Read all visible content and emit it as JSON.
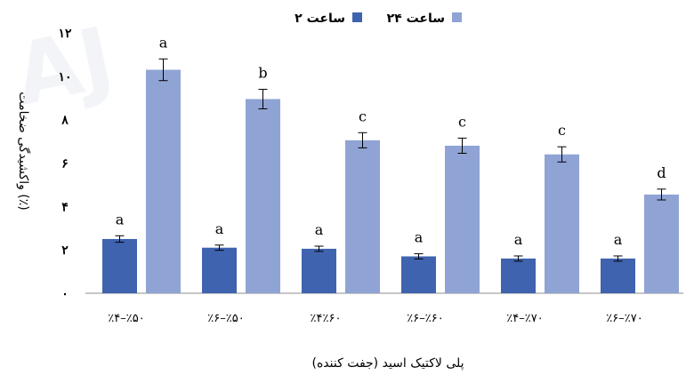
{
  "chart_data": {
    "type": "bar",
    "watermark": "AJ",
    "title": "",
    "xlabel": "پلی لاکتیک اسید (جفت کننده)",
    "ylabel": "واکشیدگی ضخامت (٪)",
    "ylim": [
      0,
      12
    ],
    "yticks": [
      0,
      2,
      4,
      6,
      8,
      10,
      12
    ],
    "ytick_labels": [
      "۰",
      "۲",
      "۴",
      "۶",
      "۸",
      "۱۰",
      "۱۲"
    ],
    "grid": false,
    "legend_position": "top-center",
    "categories": [
      "٪۴–٪۵۰",
      "٪۶–٪۵۰",
      "٪۴٪۶۰",
      "٪۶–٪۶۰",
      "٪۴–٪۷۰",
      "٪۶–٪۷۰"
    ],
    "series": [
      {
        "name": "۲ ساعت",
        "color": "#3f63ae",
        "values": [
          2.5,
          2.1,
          2.05,
          1.7,
          1.6,
          1.6
        ],
        "errors": [
          0.15,
          0.12,
          0.12,
          0.12,
          0.12,
          0.12
        ],
        "labels": [
          "a",
          "a",
          "a",
          "a",
          "a",
          "a"
        ]
      },
      {
        "name": "۲۴ ساعت",
        "color": "#8fa4d4",
        "values": [
          10.3,
          8.95,
          7.05,
          6.8,
          6.4,
          4.55
        ],
        "errors": [
          0.5,
          0.45,
          0.35,
          0.35,
          0.35,
          0.25
        ],
        "labels": [
          "a",
          "b",
          "c",
          "c",
          "c",
          "d"
        ]
      }
    ]
  }
}
